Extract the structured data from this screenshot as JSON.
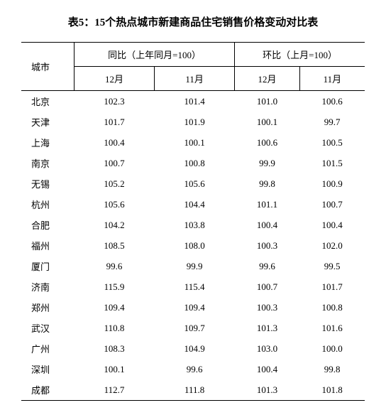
{
  "title": "表5：15个热点城市新建商品住宅销售价格变动对比表",
  "header": {
    "city": "城市",
    "yoy": "同比（上年同月=100）",
    "mom": "环比（上月=100）",
    "col_dec": "12月",
    "col_nov": "11月"
  },
  "rows": [
    {
      "city": "北京",
      "yoy_dec": "102.3",
      "yoy_nov": "101.4",
      "mom_dec": "101.0",
      "mom_nov": "100.6"
    },
    {
      "city": "天津",
      "yoy_dec": "101.7",
      "yoy_nov": "101.9",
      "mom_dec": "100.1",
      "mom_nov": "99.7"
    },
    {
      "city": "上海",
      "yoy_dec": "100.4",
      "yoy_nov": "100.1",
      "mom_dec": "100.6",
      "mom_nov": "100.5"
    },
    {
      "city": "南京",
      "yoy_dec": "100.7",
      "yoy_nov": "100.8",
      "mom_dec": "99.9",
      "mom_nov": "101.5"
    },
    {
      "city": "无锡",
      "yoy_dec": "105.2",
      "yoy_nov": "105.6",
      "mom_dec": "99.8",
      "mom_nov": "100.9"
    },
    {
      "city": "杭州",
      "yoy_dec": "105.6",
      "yoy_nov": "104.4",
      "mom_dec": "101.1",
      "mom_nov": "100.7"
    },
    {
      "city": "合肥",
      "yoy_dec": "104.2",
      "yoy_nov": "103.8",
      "mom_dec": "100.4",
      "mom_nov": "100.4"
    },
    {
      "city": "福州",
      "yoy_dec": "108.5",
      "yoy_nov": "108.0",
      "mom_dec": "100.3",
      "mom_nov": "102.0"
    },
    {
      "city": "厦门",
      "yoy_dec": "99.6",
      "yoy_nov": "99.9",
      "mom_dec": "99.6",
      "mom_nov": "99.5"
    },
    {
      "city": "济南",
      "yoy_dec": "115.9",
      "yoy_nov": "115.4",
      "mom_dec": "100.7",
      "mom_nov": "101.7"
    },
    {
      "city": "郑州",
      "yoy_dec": "109.4",
      "yoy_nov": "109.4",
      "mom_dec": "100.3",
      "mom_nov": "100.8"
    },
    {
      "city": "武汉",
      "yoy_dec": "110.8",
      "yoy_nov": "109.7",
      "mom_dec": "101.3",
      "mom_nov": "101.6"
    },
    {
      "city": "广州",
      "yoy_dec": "108.3",
      "yoy_nov": "104.9",
      "mom_dec": "103.0",
      "mom_nov": "100.0"
    },
    {
      "city": "深圳",
      "yoy_dec": "100.1",
      "yoy_nov": "99.6",
      "mom_dec": "100.4",
      "mom_nov": "99.8"
    },
    {
      "city": "成都",
      "yoy_dec": "112.7",
      "yoy_nov": "111.8",
      "mom_dec": "101.3",
      "mom_nov": "101.8"
    }
  ],
  "style": {
    "background": "#ffffff",
    "text_color": "#000000",
    "border_color": "#000000",
    "title_fontsize": 15,
    "body_fontsize": 13
  }
}
